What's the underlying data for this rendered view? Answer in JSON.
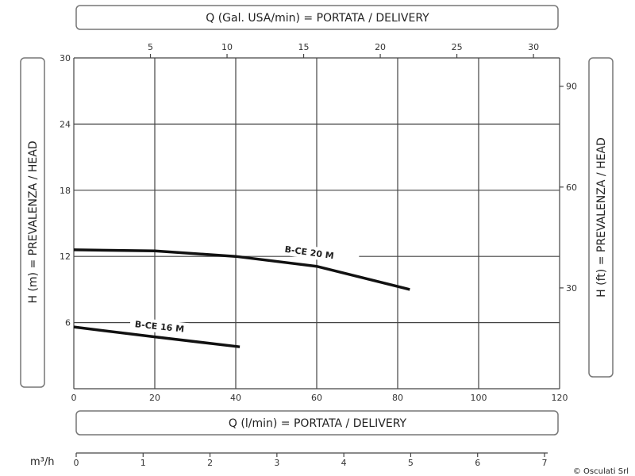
{
  "chart_data": {
    "type": "line",
    "xlabel": "Q (l/min) = PORTATA / DELIVERY",
    "xlabel_top": "Q (Gal. USA/min) = PORTATA / DELIVERY",
    "ylabel": "H (m) = PREVALENZA / HEAD",
    "ylabel_right": "H (ft) = PREVALENZA / HEAD",
    "xlabel_bottom_secondary": "m³/h",
    "xlim": [
      0,
      120
    ],
    "ylim": [
      0,
      30
    ],
    "x_ticks": [
      0,
      20,
      40,
      60,
      80,
      100,
      120
    ],
    "y_ticks": [
      6,
      12,
      18,
      24,
      30
    ],
    "top_ticks": [
      5,
      10,
      15,
      20,
      25,
      30
    ],
    "right_ticks": [
      30,
      60,
      90
    ],
    "m3h_ticks": [
      0,
      1,
      2,
      3,
      4,
      5,
      6,
      7
    ],
    "grid": true,
    "series": [
      {
        "name": "B-CE 20 M",
        "x": [
          0,
          20,
          40,
          60,
          83
        ],
        "y": [
          12.6,
          12.5,
          12.0,
          11.1,
          9.0
        ]
      },
      {
        "name": "B-CE 16 M",
        "x": [
          0,
          20,
          41
        ],
        "y": [
          5.6,
          4.7,
          3.8
        ]
      }
    ]
  },
  "copyright": "© Osculati Srl"
}
